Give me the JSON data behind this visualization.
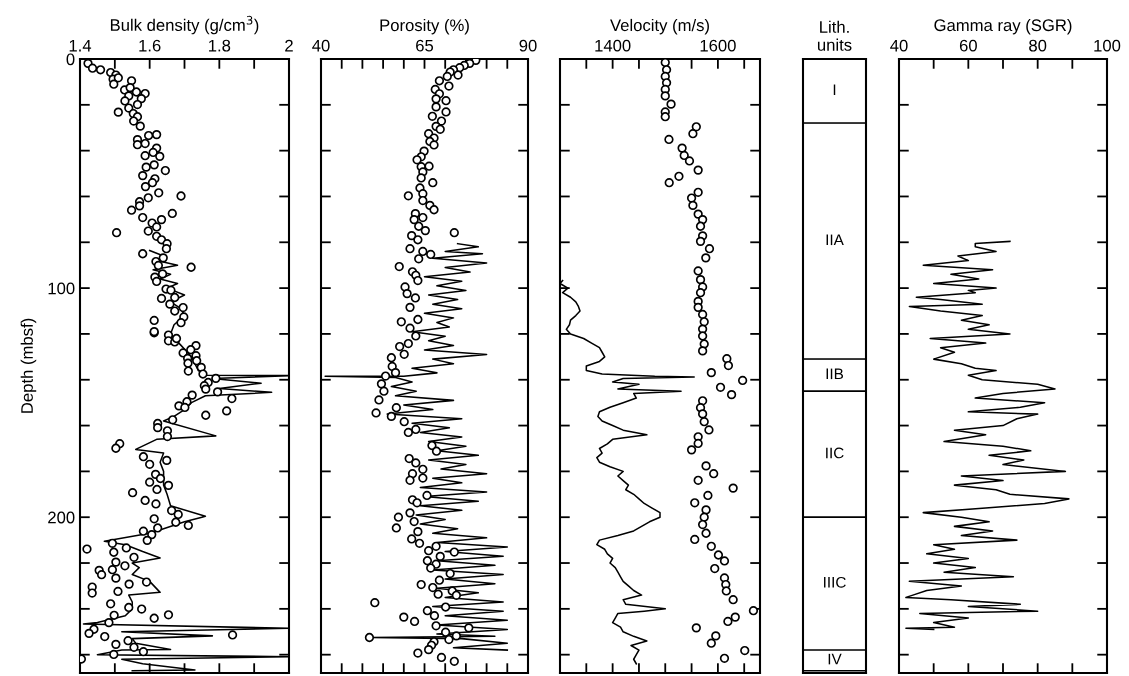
{
  "chart_data": [
    {
      "type": "scatter",
      "xlabel": "Bulk density (g/cm$^{3}$)",
      "ylabel": "Depth (mbsf)",
      "xlim": [
        1.4,
        2
      ],
      "xticks": [
        1.4,
        {
          "value": 1.5,
          "label": null
        },
        1.6,
        {
          "value": 1.7,
          "label": null
        },
        1.8,
        {
          "value": 1.9,
          "label": null
        },
        2
      ],
      "ylim": [
        268,
        0
      ],
      "yticks": [
        0,
        {
          "value": 20,
          "label": null
        },
        {
          "value": 40,
          "label": null
        },
        {
          "value": 60,
          "label": null
        },
        {
          "value": 80,
          "label": null
        },
        100,
        {
          "value": 120,
          "label": null
        },
        {
          "value": 140,
          "label": null
        },
        {
          "value": 160,
          "label": null
        },
        {
          "value": 180,
          "label": null
        },
        200,
        {
          "value": 220,
          "label": null
        },
        {
          "value": 240,
          "label": null
        },
        {
          "value": 260,
          "label": null
        }
      ],
      "series": [
        {
          "type": "line",
          "color": "#000000",
          "line_style": "solid",
          "x": [
            1.6,
            1.64,
            1.62,
            1.68,
            1.61,
            1.66,
            1.63,
            1.68,
            1.65,
            1.7,
            1.66,
            1.69,
            1.7,
            1.67,
            1.66,
            1.69,
            1.72,
            1.74,
            1.76,
            2.0,
            1.78,
            1.92,
            1.8,
            1.95,
            1.76,
            1.72,
            1.7,
            1.67,
            1.64,
            1.79,
            1.62,
            1.56,
            1.64,
            1.63,
            1.64,
            1.64,
            1.65,
            1.66,
            1.76,
            1.75,
            1.7,
            1.64,
            1.6,
            1.47,
            1.53,
            1.58,
            1.63,
            1.55,
            1.57,
            1.55,
            1.6,
            1.63,
            1.54,
            1.55,
            1.55,
            1.53,
            1.45,
            1.41,
            2.0,
            1.52,
            1.78,
            1.55,
            1.56,
            1.66,
            1.52,
            1.45,
            2.0,
            1.52,
            1.58,
            1.73,
            1.55
          ],
          "values": [
            83.6,
            86,
            88,
            90,
            92,
            94,
            96,
            98,
            100,
            103,
            106,
            109,
            112,
            116,
            120,
            125,
            130,
            136,
            138,
            138.2,
            139.5,
            141.5,
            143.8,
            145.5,
            147,
            150,
            153,
            156,
            158,
            164.5,
            166,
            170.4,
            172,
            176,
            180,
            186,
            190,
            195,
            199.6,
            200,
            202,
            205,
            207,
            210.5,
            212,
            215,
            217.8,
            220,
            222,
            225,
            228,
            232.8,
            234,
            237,
            240,
            243,
            246,
            246.6,
            248.5,
            250,
            251.8,
            253,
            255,
            257.7,
            258,
            260,
            260.9,
            262,
            264,
            266.7,
            267
          ]
        },
        {
          "type": "scatter",
          "color": "#000000",
          "marker": "circle",
          "x": [
            1.423,
            1.436,
            1.459,
            1.488,
            1.503,
            1.495,
            1.51,
            1.548,
            1.497,
            1.528,
            1.544,
            1.562,
            1.587,
            1.54,
            1.576,
            1.529,
            1.565,
            1.54,
            1.51,
            1.553,
            1.565,
            1.554,
            1.573,
            1.597,
            1.62,
            1.565,
            1.587,
            1.565,
            1.62,
            1.61,
            1.629,
            1.587,
            1.613,
            1.645,
            1.59,
            1.58,
            1.615,
            1.608,
            1.588,
            1.626,
            1.69,
            1.596,
            1.571,
            1.571,
            1.548,
            1.665,
            1.58,
            1.634,
            1.607,
            1.62,
            1.596,
            1.505,
            1.62,
            1.634,
            1.65,
            1.648,
            1.58,
            1.639,
            1.618,
            1.719,
            1.625,
            1.637,
            1.615,
            1.62,
            1.647,
            1.661,
            1.634,
            1.672,
            1.658,
            1.696,
            1.672,
            1.698,
            1.69,
            1.613,
            1.613,
            1.613,
            1.654,
            1.654,
            1.672,
            1.677,
            1.733,
            1.718,
            1.696,
            1.733,
            1.709,
            1.735,
            1.71,
            1.711,
            1.748,
            1.753,
            1.768,
            1.79,
            1.757,
            1.761,
            1.795,
            1.836,
            1.722,
            1.707,
            1.684,
            1.701,
            1.821,
            1.761,
            1.666,
            1.623,
            1.623,
            1.651,
            1.651,
            1.514,
            1.503,
            1.582,
            1.649,
            1.6,
            1.617,
            1.631,
            1.6,
            1.654,
            1.621,
            1.551,
            1.587,
            1.618,
            1.613,
            1.663,
            1.682,
            1.675,
            1.711,
            1.623,
            1.582,
            1.606,
            1.593,
            1.493,
            1.42,
            1.533,
            1.497,
            1.555,
            1.503,
            1.529,
            1.455,
            1.462,
            1.493,
            1.503,
            1.591,
            1.541,
            1.435,
            1.435,
            1.509,
            1.488,
            1.54,
            1.577,
            1.654,
            1.498,
            1.613,
            1.483,
            1.44,
            1.426,
            1.838,
            1.471,
            1.503,
            1.538,
            1.555,
            1.582,
            1.497,
            1.404
          ],
          "values": [
            1.9,
            4,
            4.7,
            5.9,
            7,
            8.8,
            8.2,
            9.5,
            11,
            13.5,
            12.5,
            14.4,
            15.1,
            16.1,
            17.3,
            18.3,
            19.9,
            21.4,
            23.2,
            23.8,
            25.2,
            27.1,
            29.3,
            33.4,
            33,
            35.2,
            36.9,
            37.4,
            38.9,
            40.8,
            42.5,
            42.2,
            46.2,
            48.7,
            47.2,
            50.9,
            52.3,
            54,
            55.7,
            58.4,
            59.8,
            60.6,
            62.3,
            64.1,
            66,
            67.4,
            69.2,
            70.1,
            71.6,
            73.3,
            75.1,
            75.8,
            77.4,
            78.9,
            80.6,
            82.8,
            85,
            86.8,
            88.4,
            90.9,
            90.1,
            93.8,
            95.2,
            97.1,
            100.4,
            100.9,
            104.5,
            104.1,
            107,
            108.5,
            110,
            112.6,
            115.1,
            114.1,
            119.5,
            119,
            120.5,
            123,
            123.5,
            122,
            125.1,
            126.9,
            128.3,
            129.5,
            130.7,
            131.7,
            132.8,
            136.2,
            134.6,
            137.5,
            141.2,
            139.4,
            142.6,
            144.1,
            145.3,
            148.2,
            146.7,
            149.6,
            151.4,
            152.1,
            153.6,
            155.5,
            157.5,
            159.1,
            160.9,
            162.3,
            164.8,
            167.9,
            169.9,
            173.6,
            175.2,
            176.9,
            181.3,
            183.1,
            184.7,
            186.1,
            187.9,
            189.3,
            192.7,
            194.2,
            200.7,
            197.1,
            198.8,
            202.2,
            203.6,
            204.7,
            206.1,
            207.6,
            210.1,
            211.4,
            213.9,
            213.4,
            215.3,
            217.5,
            219.6,
            221.2,
            223.2,
            225.1,
            222.9,
            226.6,
            228.3,
            229.2,
            230.5,
            233.1,
            232.4,
            237.8,
            239.4,
            240.1,
            242.6,
            242.8,
            244.1,
            246,
            248.9,
            250.7,
            251.4,
            252.1,
            255.5,
            253.9,
            256.8,
            258.7,
            259.9,
            261.9
          ]
        }
      ]
    },
    {
      "type": "scatter",
      "xlabel": "Porosity (%)",
      "tick_labels": "x",
      "xlim": [
        40,
        90
      ],
      "xticks": [
        40,
        {
          "value": 45,
          "label": null
        },
        {
          "value": 50,
          "label": null
        },
        {
          "value": 55,
          "label": null
        },
        {
          "value": 60,
          "label": null
        },
        65,
        {
          "value": 70,
          "label": null
        },
        {
          "value": 75,
          "label": null
        },
        {
          "value": 80,
          "label": null
        },
        {
          "value": 85,
          "label": null
        },
        90
      ],
      "ylim": [
        268,
        0
      ],
      "yticks": [
        0,
        {
          "value": 20,
          "label": null
        },
        {
          "value": 40,
          "label": null
        },
        {
          "value": 60,
          "label": null
        },
        {
          "value": 80,
          "label": null
        },
        100,
        {
          "value": 120,
          "label": null
        },
        {
          "value": 140,
          "label": null
        },
        {
          "value": 160,
          "label": null
        },
        {
          "value": 180,
          "label": null
        },
        200,
        {
          "value": 220,
          "label": null
        },
        {
          "value": 240,
          "label": null
        },
        {
          "value": 260,
          "label": null
        }
      ],
      "series": [
        {
          "type": "line",
          "color": "#000000",
          "line_style": "solid",
          "x": [
            73,
            78,
            70,
            79,
            67,
            80,
            70,
            76,
            65,
            74,
            68,
            75,
            66,
            73,
            67,
            74,
            65,
            72,
            68,
            71,
            62,
            70,
            66,
            72,
            65,
            80,
            67,
            72,
            62,
            68,
            60,
            41,
            58,
            62,
            57,
            63,
            58,
            72,
            60,
            67,
            56,
            74,
            62,
            71,
            64,
            74,
            66,
            75,
            68,
            78,
            66,
            75,
            69,
            80,
            67,
            74,
            64,
            80,
            65,
            78,
            64,
            74,
            63,
            70,
            64,
            73,
            67,
            80,
            68,
            85,
            70,
            84,
            68,
            82,
            67,
            84,
            70,
            82,
            68,
            78,
            70,
            84,
            67,
            84,
            70,
            85,
            68,
            85,
            68,
            82,
            52,
            74,
            85,
            72,
            85
          ],
          "values": [
            80.6,
            82,
            84,
            85,
            87,
            89,
            91,
            93,
            95,
            97,
            99,
            101,
            103,
            105,
            107,
            109,
            111,
            113,
            115,
            117,
            119,
            121,
            123,
            125,
            127,
            129,
            131,
            133,
            135,
            137,
            138.5,
            138.5,
            139,
            141,
            143,
            145,
            147,
            149,
            151,
            153,
            155,
            157,
            159,
            161,
            163,
            165,
            167,
            169,
            171,
            173,
            175,
            177,
            179,
            181,
            183,
            185,
            187,
            189,
            191,
            193,
            195,
            197,
            199,
            201,
            203,
            205,
            207,
            209,
            211,
            213,
            215,
            217,
            219,
            221,
            223,
            225,
            227,
            229,
            231,
            233,
            235,
            237,
            239,
            241,
            243,
            245,
            247,
            249,
            251,
            252,
            252.5,
            253,
            255,
            257,
            258
          ]
        },
        {
          "type": "scatter",
          "color": "#000000",
          "marker": "circle",
          "x": [
            77.4,
            75.9,
            74.6,
            73.5,
            72.0,
            71.2,
            70.5,
            73.1,
            68.6,
            70.9,
            67.6,
            68.6,
            67.8,
            70.2,
            67.8,
            70.2,
            66.9,
            69.1,
            67.8,
            68.8,
            66,
            67.3,
            66.3,
            67.3,
            64.9,
            64.2,
            63.2,
            66.1,
            64.2,
            64.6,
            64.2,
            67,
            63.9,
            64.6,
            61.1,
            64.6,
            66.3,
            67.3,
            62.8,
            64.6,
            62.5,
            63.6,
            65.2,
            72.2,
            61.9,
            63.4,
            61.5,
            64.6,
            66.5,
            63.6,
            58.9,
            62.1,
            62.9,
            63.4,
            60.3,
            60.8,
            62.8,
            61.5,
            59.4,
            63.4,
            61.5,
            62.9,
            61.1,
            59.0,
            60.1,
            57,
            57.2,
            58.0,
            55.6,
            54.6,
            55.2,
            54.0,
            53.3,
            57,
            58.2,
            60.1,
            61.1,
            62.9,
            66.8,
            67.9,
            61.3,
            62.9,
            64.6,
            62.1,
            64.6,
            61.5,
            65.6,
            62.1,
            63.2,
            61.5,
            58.7,
            62.5,
            58.2,
            63.4,
            61.9,
            63.8,
            67.8,
            66,
            72.2,
            68.8,
            65.7,
            67.8,
            66.5,
            71.2,
            68.6,
            64.2,
            67,
            71.7,
            72.7,
            68.3,
            53.0,
            65.7,
            70.1,
            67.4,
            60,
            62.6,
            67.8,
            75.7,
            70.1,
            72.7,
            51.7,
            70.9,
            67.3,
            66.7,
            66,
            63.4,
            69.1,
            72.2
          ],
          "values": [
            0.6,
            1.9,
            2.8,
            3.8,
            4.7,
            5.7,
            7.6,
            7.0,
            9.5,
            11.8,
            13.3,
            15.2,
            17.4,
            18.2,
            20.9,
            23.1,
            25,
            27.1,
            29.4,
            30.7,
            32.6,
            34.5,
            36,
            37.5,
            40.2,
            42.7,
            44,
            46.8,
            47,
            49.3,
            51.9,
            54,
            56.3,
            58.8,
            59.7,
            61.8,
            63.9,
            65.8,
            67.5,
            69.2,
            70.1,
            73,
            74.9,
            75.8,
            77.1,
            78.9,
            82.8,
            84,
            85.3,
            87.2,
            90.6,
            92.9,
            94.4,
            96.7,
            99.5,
            102.4,
            104.3,
            108.4,
            114.7,
            113.7,
            117.5,
            120.9,
            124.2,
            125.5,
            128.9,
            130.4,
            134.2,
            136.9,
            138.4,
            141.8,
            145,
            148.8,
            154.5,
            156,
            152.2,
            158.3,
            163,
            161.7,
            168.7,
            171.2,
            174.4,
            176.3,
            179.1,
            181,
            182.9,
            183.9,
            190.5,
            192.4,
            193.7,
            198.1,
            200,
            201.9,
            204.7,
            206.3,
            209.5,
            211.4,
            212.7,
            214.6,
            215.2,
            217.1,
            219,
            220.5,
            222.2,
            224.6,
            227.5,
            229.4,
            230.7,
            232.2,
            234.1,
            233.6,
            237.3,
            240.8,
            239.2,
            243,
            243.6,
            245.5,
            247.4,
            248.3,
            250.2,
            251.8,
            252.5,
            253.4,
            254.4,
            255.9,
            257.8,
            259.3,
            261.2,
            262.9
          ]
        }
      ]
    },
    {
      "type": "scatter",
      "xlabel": "Velocity (m/s)",
      "tick_labels": "x",
      "xlim": [
        1300,
        1680
      ],
      "xticks": [
        {
          "value": 1350,
          "label": null
        },
        1400,
        {
          "value": 1450,
          "label": null
        },
        {
          "value": 1500,
          "label": null
        },
        {
          "value": 1550,
          "label": null
        },
        1600,
        {
          "value": 1650,
          "label": null
        }
      ],
      "ylim": [
        268,
        0
      ],
      "yticks": [
        0,
        {
          "value": 20,
          "label": null
        },
        {
          "value": 40,
          "label": null
        },
        {
          "value": 60,
          "label": null
        },
        {
          "value": 80,
          "label": null
        },
        100,
        {
          "value": 120,
          "label": null
        },
        {
          "value": 140,
          "label": null
        },
        {
          "value": 160,
          "label": null
        },
        {
          "value": 180,
          "label": null
        },
        200,
        {
          "value": 220,
          "label": null
        },
        {
          "value": 240,
          "label": null
        },
        {
          "value": 260,
          "label": null
        }
      ],
      "series": [
        {
          "type": "line",
          "color": "#000000",
          "line_style": "solid",
          "x": [
            1305,
            1300,
            1315,
            1305,
            1320,
            1330,
            1335,
            1338,
            1330,
            1320,
            1318,
            1312,
            1320,
            1345,
            1360,
            1375,
            1380,
            1385,
            1375,
            1350,
            1350,
            1380,
            1480,
            1555,
            1420,
            1400,
            1450,
            1410,
            1530,
            1440,
            1445,
            1420,
            1395,
            1375,
            1372,
            1380,
            1400,
            1420,
            1465,
            1400,
            1390,
            1375,
            1380,
            1370,
            1375,
            1395,
            1420,
            1410,
            1420,
            1430,
            1425,
            1440,
            1450,
            1460,
            1475,
            1490,
            1490,
            1470,
            1455,
            1440,
            1410,
            1375,
            1370,
            1385,
            1390,
            1400,
            1395,
            1405,
            1410,
            1415,
            1420,
            1430,
            1440,
            1455,
            1420,
            1425,
            1500,
            1460,
            1410,
            1405,
            1400,
            1415,
            1420,
            1440,
            1465,
            1435,
            1450,
            1445,
            1440,
            1445
          ],
          "values": [
            96.7,
            98,
            100,
            102,
            104,
            106,
            108,
            110,
            112,
            114,
            116,
            118,
            120,
            122,
            124,
            126,
            128,
            130,
            132,
            134,
            136,
            137.5,
            138.5,
            138.8,
            139.5,
            141,
            142,
            144,
            145,
            146,
            148,
            150,
            152,
            154,
            156,
            158,
            160,
            162,
            164,
            166,
            168,
            170,
            172,
            174,
            176,
            178,
            180,
            182,
            184,
            186,
            188,
            190,
            192,
            194,
            196,
            198,
            200,
            202,
            204,
            206,
            208,
            210,
            212,
            214,
            216,
            218,
            220,
            222,
            224,
            226,
            228,
            230,
            232,
            234,
            236,
            238,
            240,
            241,
            242,
            244,
            246,
            248,
            250,
            252,
            254,
            256,
            258,
            260,
            262,
            264
          ]
        },
        {
          "type": "scatter",
          "color": "#000000",
          "marker": "circle",
          "x": [
            1500,
            1502.5,
            1500,
            1502.5,
            1500,
            1500,
            1511,
            1500,
            1500,
            1559,
            1552.5,
            1507,
            1532,
            1536,
            1546,
            1562.5,
            1526,
            1507.5,
            1562.5,
            1550,
            1552.5,
            1562.5,
            1571,
            1567,
            1571,
            1567,
            1584,
            1577,
            1562.5,
            1567,
            1571,
            1567,
            1562.5,
            1562.5,
            1571,
            1574,
            1571,
            1571,
            1574,
            1571,
            1617,
            1620,
            1587.5,
            1647,
            1605,
            1626,
            1571,
            1567,
            1571,
            1574,
            1583,
            1562.5,
            1562.5,
            1550,
            1577.5,
            1592,
            1562.5,
            1629,
            1581,
            1556,
            1577.5,
            1574,
            1571,
            1577.5,
            1556,
            1587.5,
            1601,
            1612.5,
            1594,
            1612.5,
            1615,
            1616,
            1629,
            1667.5,
            1633,
            1619,
            1559,
            1596,
            1587.5,
            1651,
            1612.5
          ],
          "values": [
            1.5,
            4.7,
            7.6,
            10.4,
            13.3,
            16.1,
            19.7,
            23.1,
            25.2,
            29.6,
            32.6,
            35.1,
            38.9,
            42.1,
            44.5,
            48.5,
            51.2,
            54,
            58.2,
            60.7,
            63.9,
            67.7,
            70.1,
            73,
            77.2,
            79.6,
            82.8,
            86.8,
            92.5,
            96.3,
            99.5,
            102,
            105.8,
            108.4,
            111.5,
            114.7,
            117.9,
            120.9,
            124.4,
            127.4,
            130.8,
            133.8,
            136.9,
            140.3,
            143.3,
            146.5,
            149.2,
            152.2,
            154.9,
            158.3,
            161.9,
            164.9,
            167.8,
            170.6,
            177.6,
            181,
            183.9,
            187.3,
            190.5,
            193.7,
            196.8,
            200,
            203.2,
            207,
            209.7,
            212.7,
            216.5,
            219.1,
            222.4,
            226.5,
            229.4,
            232.2,
            236,
            240.8,
            243.6,
            245.5,
            248.3,
            251.8,
            255,
            258.2,
            261.6
          ]
        }
      ]
    },
    {
      "type": "bar",
      "stacked": true,
      "xlabel": "Lith.\nunits",
      "tick_labels": false,
      "categories": [
        null
      ],
      "ylim": [
        268,
        0
      ],
      "series": [
        {
          "name": "I",
          "color": "#ffffff",
          "values": [
            28
          ]
        },
        {
          "name": "IIA",
          "color": "#ffffff",
          "values": [
            103
          ]
        },
        {
          "name": "IIB",
          "color": "#ffffff",
          "values": [
            14
          ]
        },
        {
          "name": "IIC",
          "color": "#ffffff",
          "values": [
            55
          ]
        },
        {
          "name": "IIIC",
          "color": "#ffffff",
          "values": [
            58
          ]
        },
        {
          "name": "IV",
          "color": "#ffffff",
          "values": [
            9
          ]
        }
      ]
    },
    {
      "type": "line",
      "xlabel": "Gamma ray (SGR)",
      "tick_labels": "x",
      "xlim": [
        40,
        100
      ],
      "xticks": [
        40,
        {
          "value": 50,
          "label": null
        },
        60,
        {
          "value": 70,
          "label": null
        },
        80,
        {
          "value": 90,
          "label": null
        },
        100
      ],
      "ylim": [
        268,
        0
      ],
      "yticks": [
        0,
        {
          "value": 20,
          "label": null
        },
        {
          "value": 40,
          "label": null
        },
        {
          "value": 60,
          "label": null
        },
        {
          "value": 80,
          "label": null
        },
        100,
        {
          "value": 120,
          "label": null
        },
        {
          "value": 140,
          "label": null
        },
        {
          "value": 160,
          "label": null
        },
        {
          "value": 180,
          "label": null
        },
        200,
        {
          "value": 220,
          "label": null
        },
        {
          "value": 240,
          "label": null
        },
        {
          "value": 260,
          "label": null
        }
      ],
      "series": [
        {
          "type": "line",
          "color": "#000000",
          "line_style": "solid",
          "x": [
            72,
            62,
            62,
            68,
            57,
            60,
            47,
            67,
            55,
            63,
            50,
            68,
            60,
            62,
            45,
            52,
            64,
            43,
            52,
            64,
            58,
            66,
            60,
            72,
            49,
            65,
            52,
            56,
            50,
            58,
            62,
            68,
            60,
            64,
            80,
            85,
            70,
            62,
            82,
            75,
            60,
            80,
            74,
            70,
            56,
            65,
            53,
            70,
            78,
            66,
            76,
            70,
            88,
            58,
            70,
            56,
            68,
            72,
            89,
            82,
            65,
            47,
            58,
            66,
            56,
            67,
            58,
            74,
            50,
            56,
            48,
            60,
            50,
            62,
            53,
            73,
            43,
            58,
            48,
            44,
            42,
            55,
            75,
            60,
            80,
            46,
            60,
            50,
            56,
            42,
            50
          ],
          "values": [
            79.6,
            80.5,
            82,
            84,
            86,
            88,
            90,
            92,
            94,
            96,
            98,
            100,
            101,
            102,
            104,
            105,
            107,
            108,
            110,
            112,
            114,
            116,
            118,
            120,
            122,
            124,
            126,
            128,
            131,
            133,
            135,
            136,
            138,
            140,
            142,
            144,
            146,
            148,
            150,
            152,
            154,
            155,
            157,
            160,
            162,
            164,
            167,
            169,
            171,
            173,
            175,
            177,
            180,
            182,
            184,
            186,
            188,
            190,
            192,
            194,
            196,
            198,
            200,
            202,
            204,
            206,
            208,
            210,
            212,
            214,
            216,
            218,
            220,
            222,
            224,
            226,
            228,
            230,
            232,
            234,
            235,
            236,
            238,
            239,
            241,
            242,
            244,
            246,
            248,
            248.5,
            249
          ]
        }
      ]
    }
  ]
}
